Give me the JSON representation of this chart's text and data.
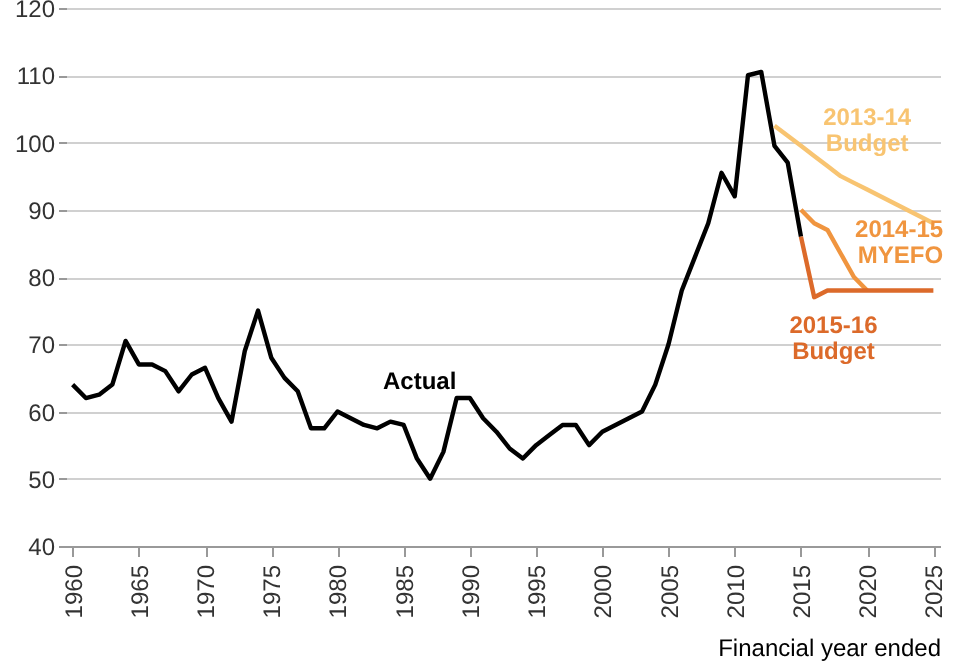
{
  "chart_data": {
    "type": "line",
    "xlabel": "Financial year ended",
    "xlim": [
      1959.5,
      2025.5
    ],
    "xticks": [
      1960,
      1965,
      1970,
      1975,
      1980,
      1985,
      1990,
      1995,
      2000,
      2005,
      2010,
      2015,
      2020,
      2025
    ],
    "ylim": [
      40,
      120
    ],
    "yticks": [
      40,
      50,
      60,
      70,
      80,
      90,
      100,
      110,
      120
    ],
    "grid": "y",
    "marker": "none",
    "line_style": "solid",
    "series": [
      {
        "name": "Actual",
        "color": "#000000",
        "x": [
          1960,
          1961,
          1962,
          1963,
          1964,
          1965,
          1966,
          1967,
          1968,
          1969,
          1970,
          1971,
          1972,
          1973,
          1974,
          1975,
          1976,
          1977,
          1978,
          1979,
          1980,
          1981,
          1982,
          1983,
          1984,
          1985,
          1986,
          1987,
          1988,
          1989,
          1990,
          1991,
          1992,
          1993,
          1994,
          1995,
          1996,
          1997,
          1998,
          1999,
          2000,
          2001,
          2002,
          2003,
          2004,
          2005,
          2006,
          2007,
          2008,
          2009,
          2010,
          2011,
          2012,
          2013,
          2014,
          2015
        ],
        "values": [
          64,
          62,
          62.5,
          64,
          70.5,
          67,
          67,
          66,
          63,
          65.5,
          66.5,
          62,
          58.5,
          69,
          75,
          68,
          65,
          63,
          57.5,
          57.5,
          60,
          59,
          58,
          57.5,
          58.5,
          58,
          53,
          50,
          54,
          62,
          62,
          59,
          57,
          54.5,
          53,
          55,
          56.5,
          58,
          58,
          55,
          57,
          58,
          59,
          60,
          64,
          70,
          78,
          83,
          88,
          95.5,
          92,
          110,
          110.5,
          99.5,
          97,
          86
        ]
      },
      {
        "name": "2013-14 Budget",
        "color": "#f8c471",
        "x": [
          2013,
          2014,
          2015,
          2016,
          2017,
          2018,
          2019,
          2020,
          2021,
          2022,
          2023,
          2024,
          2025
        ],
        "values": [
          102.5,
          101,
          99.5,
          98,
          96.5,
          95,
          94,
          93,
          92,
          91,
          90,
          89,
          88
        ]
      },
      {
        "name": "2014-15 MYEFO",
        "color": "#f0953f",
        "x": [
          2015,
          2016,
          2017,
          2018,
          2019,
          2020
        ],
        "values": [
          90,
          88,
          87,
          83.5,
          80,
          78
        ]
      },
      {
        "name": "2015-16 Budget",
        "color": "#dc6a2a",
        "x": [
          2015,
          2016,
          2017,
          2018,
          2019,
          2020,
          2021,
          2022,
          2023,
          2024,
          2025
        ],
        "values": [
          86,
          77,
          78,
          78,
          78,
          78,
          78,
          78,
          78,
          78,
          78
        ]
      }
    ]
  }
}
